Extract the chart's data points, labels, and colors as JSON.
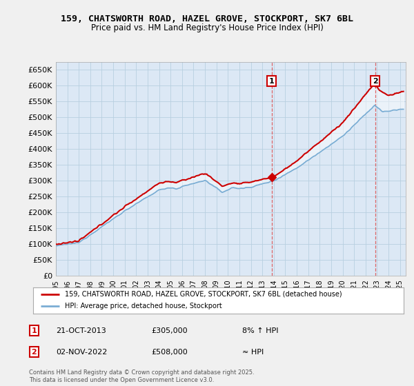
{
  "title": "159, CHATSWORTH ROAD, HAZEL GROVE, STOCKPORT, SK7 6BL",
  "subtitle": "Price paid vs. HM Land Registry's House Price Index (HPI)",
  "ylabel_ticks": [
    "£0",
    "£50K",
    "£100K",
    "£150K",
    "£200K",
    "£250K",
    "£300K",
    "£350K",
    "£400K",
    "£450K",
    "£500K",
    "£550K",
    "£600K",
    "£650K"
  ],
  "ytick_vals": [
    0,
    50000,
    100000,
    150000,
    200000,
    250000,
    300000,
    350000,
    400000,
    450000,
    500000,
    550000,
    600000,
    650000
  ],
  "ylim": [
    0,
    675000
  ],
  "xlim_start": 1995.0,
  "xlim_end": 2025.5,
  "sale1_x": 2013.81,
  "sale1_y": 305000,
  "sale1_label": "1",
  "sale2_x": 2022.84,
  "sale2_y": 508000,
  "sale2_label": "2",
  "red_line_color": "#cc0000",
  "blue_line_color": "#7aadd4",
  "blue_fill_color": "#ddeeff",
  "background_color": "#f0f0f0",
  "plot_bg_color": "#dce8f5",
  "grid_color": "#b8cfe0",
  "legend_line1": "159, CHATSWORTH ROAD, HAZEL GROVE, STOCKPORT, SK7 6BL (detached house)",
  "legend_line2": "HPI: Average price, detached house, Stockport",
  "ann1_date": "21-OCT-2013",
  "ann1_price": "£305,000",
  "ann1_hpi": "8% ↑ HPI",
  "ann2_date": "02-NOV-2022",
  "ann2_price": "£508,000",
  "ann2_hpi": "≈ HPI",
  "footer": "Contains HM Land Registry data © Crown copyright and database right 2025.\nThis data is licensed under the Open Government Licence v3.0.",
  "xtick_years": [
    1995,
    1996,
    1997,
    1998,
    1999,
    2000,
    2001,
    2002,
    2003,
    2004,
    2005,
    2006,
    2007,
    2008,
    2009,
    2010,
    2011,
    2012,
    2013,
    2014,
    2015,
    2016,
    2017,
    2018,
    2019,
    2020,
    2021,
    2022,
    2023,
    2024,
    2025
  ]
}
